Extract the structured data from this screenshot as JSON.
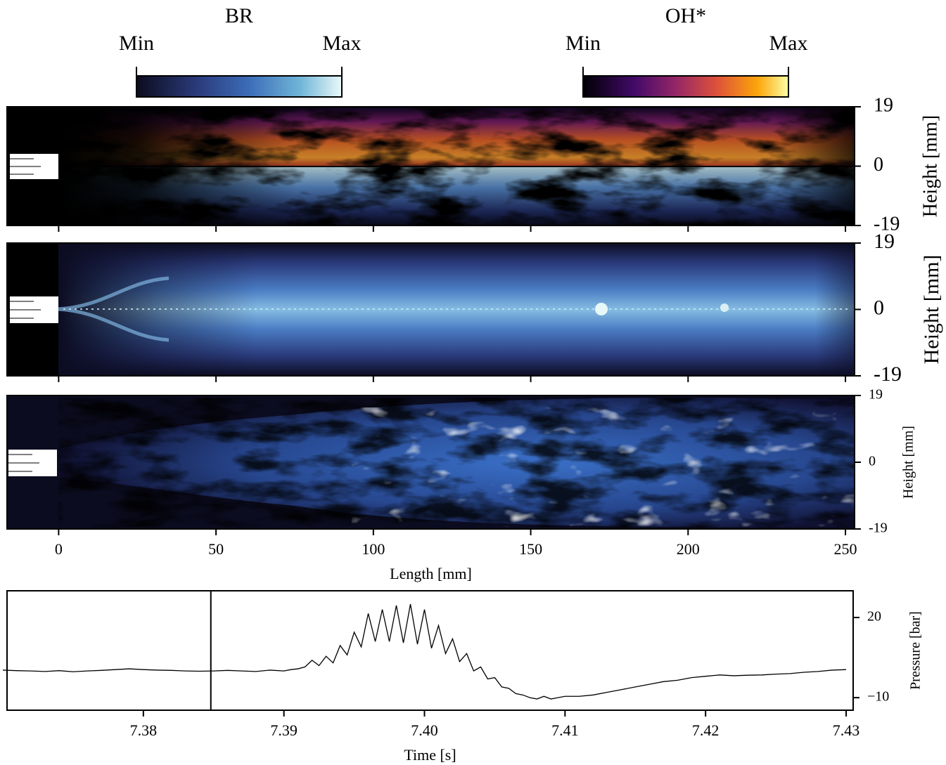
{
  "colorbars": [
    {
      "title": "BR",
      "min_label": "Min",
      "max_label": "Max"
    },
    {
      "title": "OH*",
      "min_label": "Min",
      "max_label": "Max"
    }
  ],
  "chart_data": [
    {
      "type": "image",
      "xlim": [
        -16.4,
        252.9
      ],
      "xticks": [
        0,
        50,
        100,
        150,
        200,
        250
      ],
      "show_xtick_labels": false,
      "ylim": [
        -19,
        19
      ],
      "yticks": [
        -19,
        0,
        19
      ],
      "ylabel": "Height [mm]"
    },
    {
      "type": "image",
      "xlim": [
        -16.4,
        252.9
      ],
      "xticks": [
        0,
        50,
        100,
        150,
        200,
        250
      ],
      "show_xtick_labels": false,
      "ylim": [
        -19,
        19
      ],
      "yticks": [
        -19,
        0,
        19
      ],
      "ylabel": "Height [mm]"
    },
    {
      "type": "image",
      "xlim": [
        -16.4,
        252.9
      ],
      "xticks": [
        0,
        50,
        100,
        150,
        200,
        250
      ],
      "show_xtick_labels": true,
      "xlabel": "Length [mm]",
      "ylim": [
        -19,
        19
      ],
      "yticks": [
        -19,
        0,
        19
      ],
      "ylabel": "Height [mm]"
    },
    {
      "type": "line",
      "xlabel": "Time [s]",
      "ylabel": "Pressure [bar]",
      "color": "#000000",
      "xlim": [
        7.3703,
        7.4305
      ],
      "ylim": [
        -14.7,
        30
      ],
      "vline": 7.3848,
      "xticks": [
        7.38,
        7.39,
        {
          "value": 7.4,
          "label": "7.40"
        },
        7.41,
        7.42,
        7.43
      ],
      "yticks": [
        {
          "value": -10,
          "label": "−10"
        },
        20
      ],
      "x": [
        7.37,
        7.371,
        7.372,
        7.373,
        7.374,
        7.375,
        7.376,
        7.377,
        7.378,
        7.379,
        7.38,
        7.381,
        7.382,
        7.383,
        7.384,
        7.385,
        7.386,
        7.387,
        7.388,
        7.389,
        7.39,
        7.3905,
        7.391,
        7.3915,
        7.392,
        7.3925,
        7.393,
        7.3935,
        7.394,
        7.3945,
        7.395,
        7.3955,
        7.396,
        7.3965,
        7.397,
        7.3975,
        7.398,
        7.3985,
        7.399,
        7.3995,
        7.4,
        7.4005,
        7.401,
        7.4015,
        7.402,
        7.4025,
        7.403,
        7.4035,
        7.404,
        7.4045,
        7.405,
        7.4055,
        7.406,
        7.4065,
        7.407,
        7.4075,
        7.408,
        7.4085,
        7.409,
        7.4095,
        7.41,
        7.411,
        7.412,
        7.413,
        7.414,
        7.415,
        7.416,
        7.417,
        7.418,
        7.419,
        7.42,
        7.421,
        7.422,
        7.423,
        7.424,
        7.425,
        7.426,
        7.427,
        7.428,
        7.429,
        7.43
      ],
      "values": [
        0.3,
        0.1,
        0,
        -0.2,
        0.1,
        -0.3,
        0,
        0.2,
        0.5,
        0.8,
        0.5,
        0.3,
        0.2,
        0,
        -0.1,
        0,
        0.2,
        0,
        -0.2,
        0.3,
        0,
        0.5,
        0.8,
        1.5,
        4,
        2,
        5.5,
        3,
        9.5,
        6,
        14.5,
        9,
        21.5,
        11,
        23,
        11,
        24.5,
        10.5,
        25,
        10,
        23,
        8.5,
        17,
        6.5,
        12,
        3.5,
        6.5,
        0,
        1.5,
        -3,
        -2.5,
        -6,
        -6.5,
        -8.5,
        -9,
        -10,
        -10.5,
        -9.5,
        -10.5,
        -10,
        -9.5,
        -9.5,
        -9,
        -8,
        -7,
        -6,
        -5,
        -4,
        -3.5,
        -2.5,
        -2,
        -1.5,
        -1.8,
        -1.6,
        -1.5,
        -1.2,
        -1,
        -0.5,
        -0.2,
        0.3,
        0.5
      ]
    }
  ]
}
